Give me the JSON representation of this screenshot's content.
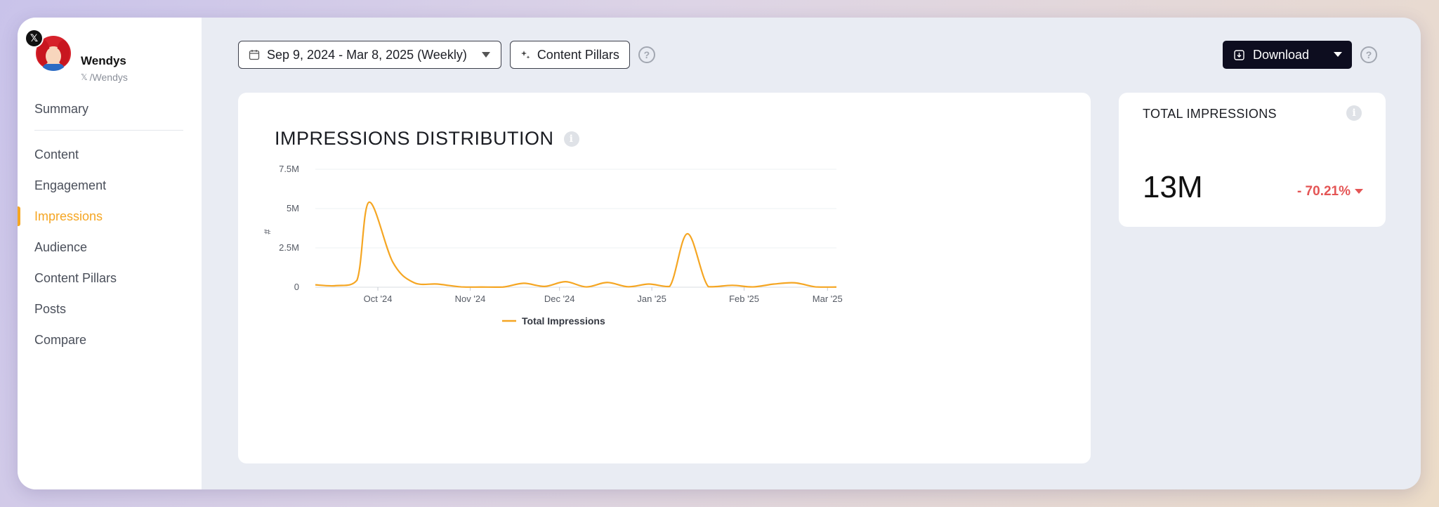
{
  "profile": {
    "name": "Wendys",
    "handle": "/Wendys",
    "platform_badge": "𝕏"
  },
  "sidebar": {
    "items": [
      {
        "label": "Summary"
      },
      {
        "label": "Content"
      },
      {
        "label": "Engagement"
      },
      {
        "label": "Impressions",
        "active": true
      },
      {
        "label": "Audience"
      },
      {
        "label": "Content Pillars"
      },
      {
        "label": "Posts"
      },
      {
        "label": "Compare"
      }
    ]
  },
  "toolbar": {
    "date_range": "Sep 9, 2024 - Mar 8, 2025 (Weekly)",
    "content_pillars_label": "Content Pillars",
    "download_label": "Download",
    "help_glyph": "?"
  },
  "colors": {
    "accent": "#f5a623",
    "negative": "#e45555",
    "dark_button": "#0d0d1f"
  },
  "impressions_card": {
    "title": "IMPRESSIONS DISTRIBUTION",
    "info_glyph": "i"
  },
  "total_card": {
    "title": "TOTAL IMPRESSIONS",
    "value": "13M",
    "change": "- 70.21%",
    "info_glyph": "i"
  },
  "chart_data": {
    "type": "line",
    "title": "IMPRESSIONS DISTRIBUTION",
    "ylabel": "#",
    "xlabel": "",
    "ylim": [
      0,
      7500000
    ],
    "yticks": [
      {
        "value": 0,
        "label": "0"
      },
      {
        "value": 2500000,
        "label": "2.5M"
      },
      {
        "value": 5000000,
        "label": "5M"
      },
      {
        "value": 7500000,
        "label": "7.5M"
      }
    ],
    "xticks": [
      {
        "date": "2024-09-30",
        "label": "Oct '24"
      },
      {
        "date": "2024-10-31",
        "label": "Nov '24"
      },
      {
        "date": "2024-11-30",
        "label": "Dec '24"
      },
      {
        "date": "2024-12-31",
        "label": "Jan '25"
      },
      {
        "date": "2025-01-31",
        "label": "Feb '25"
      },
      {
        "date": "2025-02-28",
        "label": "Mar '25"
      }
    ],
    "xlim": [
      "2024-09-09",
      "2025-03-03"
    ],
    "grid": true,
    "legend": "bottom-center",
    "series": [
      {
        "name": "Total Impressions",
        "color": "#f5a623",
        "points": [
          {
            "x": "2024-09-09",
            "y": 150000
          },
          {
            "x": "2024-09-16",
            "y": 100000
          },
          {
            "x": "2024-09-23",
            "y": 450000
          },
          {
            "x": "2024-09-27",
            "y": 5400000
          },
          {
            "x": "2024-10-05",
            "y": 1600000
          },
          {
            "x": "2024-10-12",
            "y": 300000
          },
          {
            "x": "2024-10-20",
            "y": 200000
          },
          {
            "x": "2024-10-28",
            "y": 20000
          },
          {
            "x": "2024-11-04",
            "y": 10000
          },
          {
            "x": "2024-11-11",
            "y": 10000
          },
          {
            "x": "2024-11-18",
            "y": 250000
          },
          {
            "x": "2024-11-25",
            "y": 50000
          },
          {
            "x": "2024-12-02",
            "y": 350000
          },
          {
            "x": "2024-12-09",
            "y": 20000
          },
          {
            "x": "2024-12-16",
            "y": 300000
          },
          {
            "x": "2024-12-23",
            "y": 30000
          },
          {
            "x": "2024-12-30",
            "y": 200000
          },
          {
            "x": "2025-01-06",
            "y": 50000
          },
          {
            "x": "2025-01-12",
            "y": 3400000
          },
          {
            "x": "2025-01-19",
            "y": 30000
          },
          {
            "x": "2025-01-27",
            "y": 120000
          },
          {
            "x": "2025-02-03",
            "y": 20000
          },
          {
            "x": "2025-02-10",
            "y": 200000
          },
          {
            "x": "2025-02-17",
            "y": 280000
          },
          {
            "x": "2025-02-24",
            "y": 20000
          },
          {
            "x": "2025-03-03",
            "y": 10000
          }
        ]
      }
    ]
  }
}
